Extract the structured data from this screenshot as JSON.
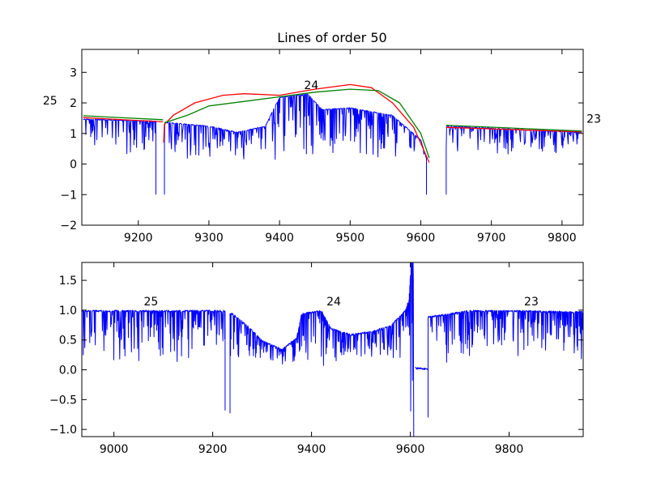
{
  "figure": {
    "title": "Lines of order 50"
  },
  "colors": {
    "spectrum": "#0000ff",
    "fit_red": "#ff0000",
    "fit_green": "#008000",
    "axes": "#000000",
    "background": "#ffffff"
  },
  "chart_data": [
    {
      "type": "line",
      "title": "Lines of order 50",
      "xlabel": "",
      "ylabel": "",
      "xlim": [
        9120,
        9830
      ],
      "ylim": [
        -2,
        3.75
      ],
      "grid": false,
      "xticks": [
        9200,
        9300,
        9400,
        9500,
        9600,
        9700,
        9800
      ],
      "xtick_labels": [
        "9200",
        "9300",
        "9400",
        "9500",
        "9600",
        "9700",
        "9800"
      ],
      "yticks": [
        -2,
        -1,
        0,
        1,
        2,
        3
      ],
      "ytick_labels": [
        "−2",
        "−1",
        "0",
        "1",
        "2",
        "3"
      ],
      "annotations": [
        {
          "text": "25",
          "x": 9075,
          "y": 1.95
        },
        {
          "text": "24",
          "x": 9445,
          "y": 2.45
        },
        {
          "text": "23",
          "x": 9845,
          "y": 1.35
        }
      ],
      "series": [
        {
          "color": "#0000ff",
          "style": "absorption-spectrum",
          "segments": [
            {
              "x0": 9122,
              "x1": 9225,
              "cont_start": 1.48,
              "cont_end": 1.42,
              "floor": 0.05,
              "dip_after": -1.0
            },
            {
              "x0": 9237,
              "x1": 9608,
              "knots": [
                [
                  9237,
                  1.38
                ],
                [
                  9300,
                  1.25
                ],
                [
                  9340,
                  1.05
                ],
                [
                  9380,
                  1.25
                ],
                [
                  9400,
                  2.2
                ],
                [
                  9440,
                  2.3
                ],
                [
                  9460,
                  1.8
                ],
                [
                  9500,
                  1.85
                ],
                [
                  9560,
                  1.6
                ],
                [
                  9600,
                  0.8
                ],
                [
                  9608,
                  0.2
                ]
              ],
              "floor": 0.05,
              "dip_before": -1.0,
              "dip_after": -1.0
            },
            {
              "x0": 9636,
              "x1": 9828,
              "cont_start": 1.25,
              "cont_end": 1.05,
              "floor": 0.3,
              "dip_before": -1.0
            }
          ]
        },
        {
          "color": "#ff0000",
          "style": "fit",
          "segments": [
            [
              [
                9122,
                1.52
              ],
              [
                9235,
                1.38
              ]
            ],
            [
              [
                9236,
                0.7
              ],
              [
                9237,
                1.3
              ],
              [
                9250,
                1.6
              ],
              [
                9280,
                2.0
              ],
              [
                9320,
                2.25
              ],
              [
                9350,
                2.3
              ],
              [
                9400,
                2.25
              ],
              [
                9450,
                2.45
              ],
              [
                9500,
                2.6
              ],
              [
                9530,
                2.5
              ],
              [
                9560,
                2.0
              ],
              [
                9590,
                1.2
              ],
              [
                9612,
                0.05
              ]
            ],
            [
              [
                9636,
                1.2
              ],
              [
                9828,
                1.05
              ]
            ]
          ]
        },
        {
          "color": "#008000",
          "style": "fit",
          "segments": [
            [
              [
                9122,
                1.58
              ],
              [
                9235,
                1.45
              ]
            ],
            [
              [
                9237,
                1.35
              ],
              [
                9270,
                1.6
              ],
              [
                9300,
                1.9
              ],
              [
                9350,
                2.05
              ],
              [
                9400,
                2.2
              ],
              [
                9450,
                2.35
              ],
              [
                9500,
                2.45
              ],
              [
                9540,
                2.4
              ],
              [
                9570,
                2.0
              ],
              [
                9600,
                1.0
              ],
              [
                9612,
                0.2
              ]
            ],
            [
              [
                9636,
                1.27
              ],
              [
                9828,
                1.08
              ]
            ]
          ]
        }
      ]
    },
    {
      "type": "line",
      "title": "",
      "xlabel": "",
      "ylabel": "",
      "xlim": [
        8935,
        9950
      ],
      "ylim": [
        -1.12,
        1.8
      ],
      "grid": false,
      "xticks": [
        9000,
        9200,
        9400,
        9600,
        9800
      ],
      "xtick_labels": [
        "9000",
        "9200",
        "9400",
        "9600",
        "9800"
      ],
      "yticks": [
        -1.0,
        -0.5,
        0.0,
        0.5,
        1.0,
        1.5
      ],
      "ytick_labels": [
        "−1.0",
        "−0.5",
        "0.0",
        "0.5",
        "1.0",
        "1.5"
      ],
      "annotations": [
        {
          "text": "25",
          "x": 9075,
          "y": 1.08
        },
        {
          "text": "24",
          "x": 9445,
          "y": 1.08
        },
        {
          "text": "23",
          "x": 9845,
          "y": 1.08
        }
      ],
      "series": [
        {
          "color": "#0000ff",
          "style": "absorption-spectrum",
          "segments": [
            {
              "x0": 8936,
              "x1": 9225,
              "cont_start": 1.0,
              "cont_end": 1.0,
              "floor": 0.05,
              "dip_after": -0.68
            },
            {
              "x0": 9235,
              "x1": 9240,
              "cont_start": 0.95,
              "cont_end": 0.95,
              "floor": -0.73,
              "dip_before": -0.73
            },
            {
              "x0": 9240,
              "x1": 9598,
              "knots": [
                [
                  9240,
                  0.95
                ],
                [
                  9270,
                  0.75
                ],
                [
                  9300,
                  0.5
                ],
                [
                  9340,
                  0.35
                ],
                [
                  9370,
                  0.55
                ],
                [
                  9380,
                  0.95
                ],
                [
                  9420,
                  1.0
                ],
                [
                  9440,
                  0.7
                ],
                [
                  9480,
                  0.6
                ],
                [
                  9520,
                  0.65
                ],
                [
                  9560,
                  0.75
                ],
                [
                  9590,
                  1.0
                ],
                [
                  9598,
                  1.2
                ]
              ],
              "floor": 0.03
            },
            {
              "x0": 9598,
              "x1": 9607,
              "knots": [
                [
                  9598,
                  1.3
                ],
                [
                  9602,
                  1.8
                ],
                [
                  9606,
                  1.8
                ],
                [
                  9607,
                  -1.12
                ]
              ],
              "floor": -1.12
            },
            {
              "x0": 9610,
              "x1": 9635,
              "cont_start": 0.05,
              "cont_end": 0.02,
              "floor": 0.0
            },
            {
              "x0": 9636,
              "x1": 9950,
              "knots": [
                [
                  9636,
                  0.9
                ],
                [
                  9680,
                  0.95
                ],
                [
                  9720,
                  1.0
                ],
                [
                  9800,
                  1.0
                ],
                [
                  9950,
                  0.98
                ]
              ],
              "floor": 0.1,
              "dip_before": -0.8
            }
          ]
        }
      ]
    }
  ]
}
